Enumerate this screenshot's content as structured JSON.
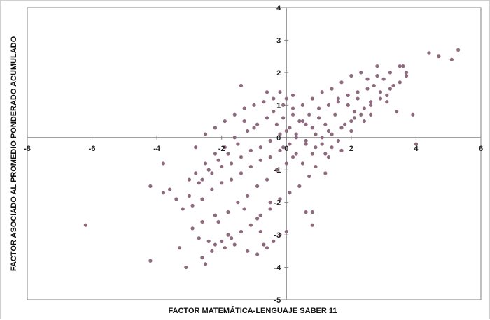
{
  "chart_data": {
    "type": "scatter",
    "title": "",
    "xlabel": "FACTOR MATEMÁTICA-LENGUAJE SABER 11",
    "ylabel": "FACTOR ASOCIADO AL PROMEDIO PONDERADO ACUMULADO",
    "xlim": [
      -8,
      6
    ],
    "ylim": [
      -5,
      4
    ],
    "xticks": [
      -8,
      -6,
      -4,
      -2,
      0,
      2,
      4,
      6
    ],
    "yticks": [
      -5,
      -4,
      -3,
      -2,
      -1,
      0,
      1,
      2,
      3,
      4
    ],
    "grid": false,
    "legend": "none",
    "marker_color": "#8e6a7e",
    "series": [
      {
        "points": [
          [
            -6.2,
            -2.7
          ],
          [
            -4.2,
            -1.5
          ],
          [
            -3.8,
            -1.7
          ],
          [
            -3.8,
            -0.8
          ],
          [
            -4.2,
            -3.8
          ],
          [
            -3.1,
            -4.0
          ],
          [
            -3.3,
            -3.4
          ],
          [
            -2.6,
            -3.7
          ],
          [
            -2.5,
            -3.9
          ],
          [
            -2.4,
            -3.2
          ],
          [
            -2.2,
            -3.3
          ],
          [
            -1.9,
            -3.4
          ],
          [
            -1.8,
            -3.0
          ],
          [
            -1.6,
            -3.3
          ],
          [
            -1.2,
            -3.5
          ],
          [
            -0.9,
            -3.6
          ],
          [
            -0.7,
            -3.3
          ],
          [
            -0.6,
            -3.4
          ],
          [
            -0.8,
            -2.9
          ],
          [
            -0.4,
            -3.2
          ],
          [
            -0.2,
            -3.0
          ],
          [
            0.0,
            -2.9
          ],
          [
            0.8,
            -2.3
          ],
          [
            0.6,
            -2.3
          ],
          [
            0.8,
            -2.7
          ],
          [
            -2.6,
            -2.6
          ],
          [
            -2.2,
            -2.4
          ],
          [
            -1.3,
            -2.2
          ],
          [
            -0.9,
            -2.5
          ],
          [
            -0.5,
            -2.0
          ],
          [
            -1.4,
            1.6
          ],
          [
            -0.6,
            1.4
          ],
          [
            -0.2,
            1.4
          ],
          [
            0.0,
            1.2
          ],
          [
            0.2,
            1.3
          ],
          [
            4.4,
            2.6
          ],
          [
            4.7,
            2.5
          ],
          [
            5.1,
            2.4
          ],
          [
            5.3,
            2.7
          ],
          [
            3.9,
            0.7
          ],
          [
            4.0,
            -0.2
          ],
          [
            2.8,
            2.2
          ],
          [
            3.5,
            2.2
          ],
          [
            3.7,
            2.0
          ],
          [
            3.3,
            1.6
          ],
          [
            3.1,
            1.3
          ],
          [
            3.4,
            0.8
          ],
          [
            2.6,
            0.7
          ],
          [
            2.1,
            0.8
          ],
          [
            1.6,
            1.1
          ],
          [
            0.9,
            -0.9
          ],
          [
            1.2,
            -1.1
          ],
          [
            1.7,
            -0.4
          ],
          [
            1.3,
            0.2
          ],
          [
            1.0,
            0.6
          ],
          [
            0.6,
            0.4
          ],
          [
            0.3,
            0.1
          ],
          [
            0.1,
            -0.2
          ],
          [
            -0.2,
            -0.4
          ],
          [
            -0.5,
            -0.6
          ],
          [
            -0.8,
            -0.7
          ],
          [
            -1.1,
            -0.9
          ],
          [
            -1.4,
            -1.1
          ],
          [
            -1.7,
            -1.3
          ],
          [
            -2.0,
            -1.4
          ],
          [
            -2.3,
            -1.6
          ],
          [
            -2.6,
            -1.9
          ],
          [
            -2.9,
            -2.1
          ],
          [
            -3.2,
            -2.2
          ],
          [
            -1.0,
            0.3
          ],
          [
            -1.3,
            0.5
          ],
          [
            -1.6,
            0.0
          ],
          [
            -1.9,
            -0.3
          ],
          [
            -2.2,
            -0.5
          ],
          [
            -2.5,
            -0.8
          ],
          [
            -2.8,
            -1.1
          ],
          [
            -3.0,
            -1.3
          ],
          [
            -0.4,
            0.8
          ],
          [
            -0.1,
            0.6
          ],
          [
            0.2,
            0.9
          ],
          [
            0.5,
            1.0
          ],
          [
            0.8,
            1.2
          ],
          [
            1.1,
            1.4
          ],
          [
            1.4,
            1.5
          ],
          [
            1.7,
            1.7
          ],
          [
            2.0,
            1.9
          ],
          [
            2.3,
            2.0
          ],
          [
            2.5,
            1.8
          ],
          [
            2.7,
            1.6
          ],
          [
            3.0,
            1.8
          ],
          [
            2.2,
            1.2
          ],
          [
            1.9,
            1.0
          ],
          [
            1.5,
            0.7
          ],
          [
            1.2,
            0.4
          ],
          [
            0.9,
            0.1
          ],
          [
            0.6,
            -0.2
          ],
          [
            0.3,
            -0.5
          ],
          [
            0.0,
            -0.8
          ],
          [
            -0.3,
            -1.0
          ],
          [
            -0.6,
            -1.3
          ],
          [
            -0.9,
            -1.5
          ],
          [
            -1.2,
            -1.8
          ],
          [
            -1.5,
            -2.0
          ],
          [
            -1.8,
            -2.3
          ],
          [
            -2.1,
            -2.6
          ],
          [
            2.4,
            0.5
          ],
          [
            2.0,
            0.2
          ],
          [
            1.6,
            -0.1
          ],
          [
            1.3,
            -0.6
          ],
          [
            0.7,
            -1.2
          ],
          [
            0.4,
            -1.5
          ],
          [
            0.1,
            -1.7
          ],
          [
            -0.2,
            -1.9
          ],
          [
            -0.5,
            -2.2
          ],
          [
            -0.8,
            -2.4
          ],
          [
            -1.1,
            -2.7
          ],
          [
            -1.4,
            -2.9
          ],
          [
            -1.7,
            -3.1
          ],
          [
            -2.0,
            -3.2
          ],
          [
            -2.3,
            -3.5
          ],
          [
            -2.7,
            -3.1
          ],
          [
            -2.9,
            -2.8
          ],
          [
            -3.4,
            -1.9
          ],
          [
            -3.6,
            -1.6
          ],
          [
            -3.0,
            -1.8
          ],
          [
            -2.8,
            -0.3
          ],
          [
            -2.5,
            0.1
          ],
          [
            -2.2,
            0.3
          ],
          [
            -1.9,
            0.5
          ],
          [
            -1.6,
            0.7
          ],
          [
            -1.3,
            0.9
          ],
          [
            -1.0,
            1.0
          ],
          [
            -0.7,
            1.1
          ],
          [
            -0.4,
            1.2
          ],
          [
            -0.1,
            1.0
          ],
          [
            0.2,
            0.7
          ],
          [
            0.5,
            0.5
          ],
          [
            0.8,
            0.3
          ],
          [
            1.1,
            0.0
          ],
          [
            1.4,
            -0.3
          ],
          [
            1.8,
            0.4
          ],
          [
            2.1,
            0.6
          ],
          [
            2.4,
            0.9
          ],
          [
            2.6,
            1.1
          ],
          [
            2.9,
            1.4
          ],
          [
            3.2,
            1.5
          ],
          [
            3.5,
            1.7
          ],
          [
            3.7,
            1.9
          ],
          [
            3.6,
            2.2
          ],
          [
            3.2,
            2.0
          ],
          [
            2.8,
            1.9
          ],
          [
            2.5,
            1.5
          ],
          [
            2.2,
            1.4
          ],
          [
            1.9,
            1.3
          ],
          [
            1.6,
            1.2
          ],
          [
            1.3,
            1.0
          ],
          [
            1.0,
            0.9
          ],
          [
            0.7,
            0.7
          ],
          [
            0.4,
            0.5
          ],
          [
            0.1,
            0.3
          ],
          [
            -0.2,
            0.1
          ],
          [
            -0.5,
            -0.1
          ],
          [
            -0.8,
            -0.3
          ],
          [
            -1.1,
            -0.4
          ],
          [
            -1.4,
            -0.6
          ],
          [
            -1.7,
            -0.8
          ],
          [
            -2.0,
            -0.9
          ],
          [
            -2.3,
            -1.1
          ],
          [
            -2.6,
            -1.3
          ],
          [
            -0.3,
            0.4
          ],
          [
            0.0,
            0.2
          ],
          [
            0.3,
            0.0
          ],
          [
            0.6,
            -0.1
          ],
          [
            0.9,
            -0.3
          ],
          [
            1.2,
            -0.5
          ],
          [
            -0.6,
            0.6
          ],
          [
            -0.9,
            0.4
          ],
          [
            -1.2,
            0.2
          ],
          [
            -1.5,
            -0.2
          ],
          [
            -1.8,
            -0.5
          ],
          [
            -2.1,
            -0.7
          ],
          [
            -2.4,
            -1.0
          ],
          [
            -2.7,
            -1.4
          ],
          [
            -0.1,
            -0.3
          ],
          [
            0.2,
            -0.6
          ],
          [
            0.5,
            -0.8
          ],
          [
            0.8,
            -0.5
          ],
          [
            1.1,
            -0.2
          ],
          [
            1.4,
            0.1
          ],
          [
            1.7,
            0.3
          ],
          [
            2.0,
            0.5
          ],
          [
            2.3,
            0.7
          ],
          [
            2.6,
            1.0
          ],
          [
            2.9,
            1.2
          ],
          [
            3.1,
            1.1
          ]
        ]
      }
    ]
  }
}
